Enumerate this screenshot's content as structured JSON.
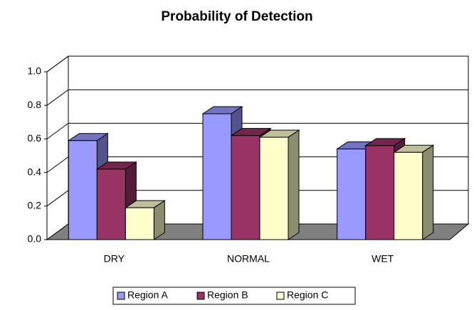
{
  "chart_data": {
    "type": "bar",
    "title": "Probability of Detection",
    "categories": [
      "DRY",
      "NORMAL",
      "WET"
    ],
    "series": [
      {
        "name": "Region A",
        "color": "#9999ff",
        "values": [
          0.59,
          0.75,
          0.54
        ]
      },
      {
        "name": "Region B",
        "color": "#993366",
        "values": [
          0.42,
          0.62,
          0.56
        ]
      },
      {
        "name": "Region C",
        "color": "#ffffcc",
        "values": [
          0.19,
          0.61,
          0.52
        ]
      }
    ],
    "ylim": [
      0,
      1
    ],
    "yticks": [
      {
        "value": 0,
        "label": "0.0"
      },
      0.2,
      0.4,
      0.6,
      0.8,
      {
        "value": 1,
        "label": "1.0"
      }
    ],
    "grid": true,
    "legend": "bottom"
  }
}
